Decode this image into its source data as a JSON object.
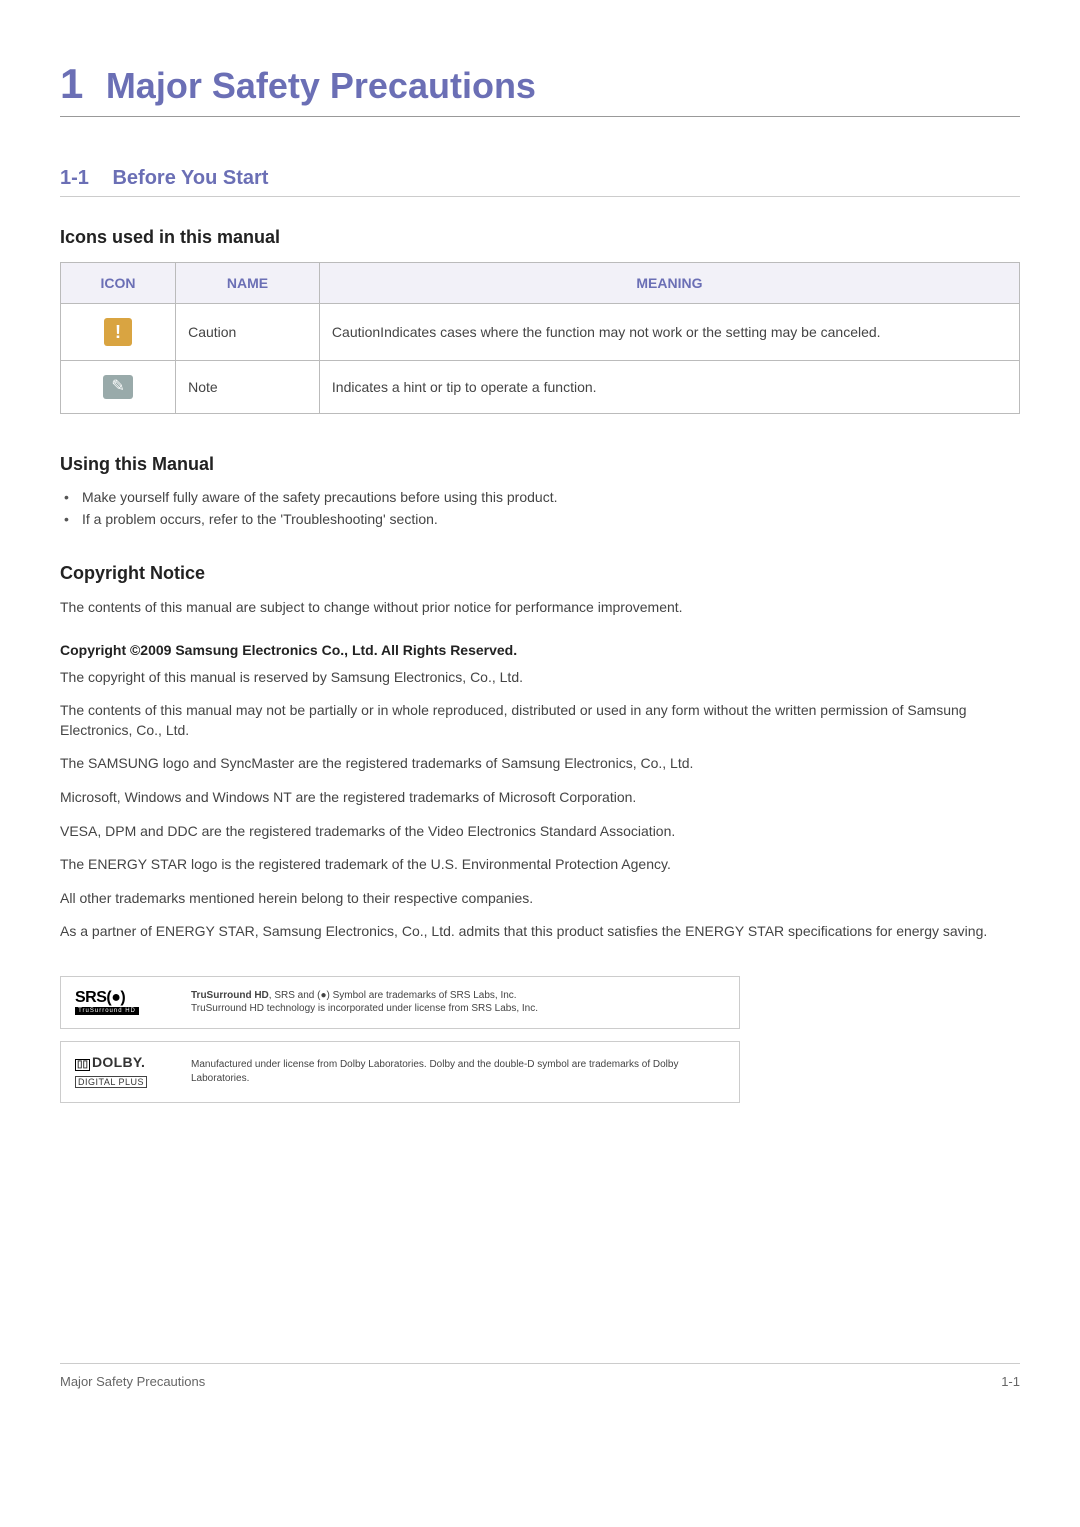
{
  "chapter": {
    "num": "1",
    "title": "Major Safety Precautions"
  },
  "section": {
    "num": "1-1",
    "title": "Before You Start"
  },
  "icons_heading": "Icons used in this manual",
  "icon_table": {
    "columns": [
      "ICON",
      "NAME",
      "MEANING"
    ],
    "rows": [
      {
        "name": "Caution",
        "meaning": "CautionIndicates cases where the function may not work or the setting may be canceled."
      },
      {
        "name": "Note",
        "meaning": "Indicates a hint or tip to operate a function."
      }
    ]
  },
  "using_heading": "Using this Manual",
  "using_bullets": [
    "Make yourself fully aware of the safety precautions before using this product.",
    "If a problem occurs, refer to the 'Troubleshooting' section."
  ],
  "copyright_heading": "Copyright Notice",
  "copyright_intro": "The contents of this manual are subject to change without prior notice for performance improvement.",
  "copyright_bold": "Copyright ©2009 Samsung Electronics Co., Ltd. All Rights Reserved.",
  "copyright_paras": [
    "The copyright of this manual is reserved by Samsung Electronics, Co., Ltd.",
    "The contents of this manual may not be partially or in whole reproduced, distributed or used in any form without the written permission of Samsung Electronics, Co., Ltd.",
    "The SAMSUNG logo and SyncMaster are the registered trademarks of Samsung Electronics, Co., Ltd.",
    "Microsoft, Windows and Windows NT are the registered trademarks of Microsoft Corporation.",
    "VESA, DPM and DDC are the registered trademarks of the Video Electronics Standard Association.",
    "The ENERGY STAR logo is the registered trademark of the U.S. Environmental Protection Agency.",
    "All other trademarks mentioned herein belong to their respective companies.",
    "As a partner of ENERGY STAR, Samsung Electronics, Co., Ltd. admits that this product satisfies the ENERGY STAR specifications for energy saving."
  ],
  "srs": {
    "logo_main": "SRS(●)",
    "logo_sub": "TruSurround HD",
    "line1": "TruSurround HD, SRS and (●) Symbol are trademarks of SRS Labs, Inc.",
    "line2": "TruSurround HD technology is incorporated under license from SRS Labs, Inc."
  },
  "dolby": {
    "logo_main": "DOLBY.",
    "logo_sub": "DIGITAL PLUS",
    "text": "Manufactured under license from Dolby Laboratories. Dolby and the double-D symbol are trademarks of Dolby Laboratories."
  },
  "footer": {
    "left": "Major Safety Precautions",
    "right": "1-1"
  },
  "colors": {
    "accent": "#6b6fb5",
    "header_bg": "#f2f1f8",
    "border": "#bbb",
    "caution_bg": "#d9a441",
    "note_bg": "#9aa"
  }
}
